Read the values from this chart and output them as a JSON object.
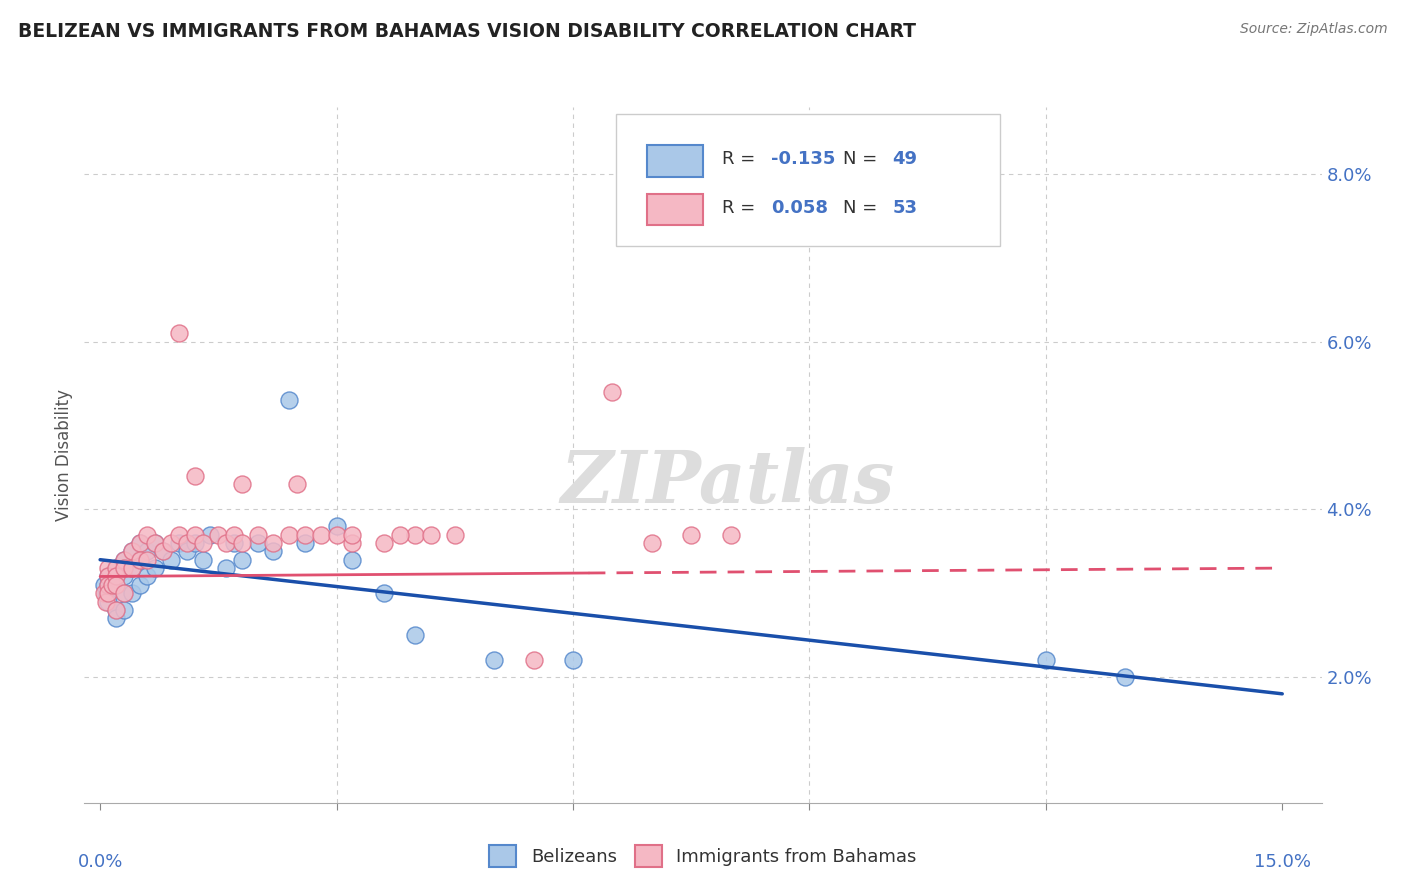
{
  "title": "BELIZEAN VS IMMIGRANTS FROM BAHAMAS VISION DISABILITY CORRELATION CHART",
  "source": "Source: ZipAtlas.com",
  "ylabel": "Vision Disability",
  "xgrid_ticks": [
    0.0,
    0.03,
    0.06,
    0.09,
    0.12,
    0.15
  ],
  "ygrid_ticks": [
    0.02,
    0.04,
    0.06,
    0.08
  ],
  "xlim": [
    -0.002,
    0.155
  ],
  "ylim": [
    0.005,
    0.088
  ],
  "blue_R": -0.135,
  "blue_N": 49,
  "pink_R": 0.058,
  "pink_N": 53,
  "blue_color": "#aac8e8",
  "pink_color": "#f5b8c4",
  "blue_edge_color": "#5588cc",
  "pink_edge_color": "#e07088",
  "blue_line_color": "#1a4faa",
  "pink_line_color": "#e05070",
  "watermark": "ZIPatlas",
  "legend_label_blue": "Belizeans",
  "legend_label_pink": "Immigrants from Bahamas",
  "blue_x": [
    0.0005,
    0.0007,
    0.001,
    0.001,
    0.001,
    0.001,
    0.0015,
    0.002,
    0.002,
    0.002,
    0.002,
    0.002,
    0.003,
    0.003,
    0.003,
    0.003,
    0.003,
    0.004,
    0.004,
    0.004,
    0.005,
    0.005,
    0.005,
    0.006,
    0.006,
    0.007,
    0.007,
    0.008,
    0.009,
    0.01,
    0.011,
    0.012,
    0.013,
    0.014,
    0.016,
    0.017,
    0.018,
    0.02,
    0.022,
    0.024,
    0.026,
    0.03,
    0.032,
    0.036,
    0.04,
    0.05,
    0.06,
    0.12,
    0.13
  ],
  "blue_y": [
    0.031,
    0.03,
    0.032,
    0.031,
    0.03,
    0.029,
    0.031,
    0.033,
    0.032,
    0.031,
    0.028,
    0.027,
    0.034,
    0.033,
    0.032,
    0.03,
    0.028,
    0.035,
    0.033,
    0.03,
    0.036,
    0.034,
    0.031,
    0.035,
    0.032,
    0.036,
    0.033,
    0.035,
    0.034,
    0.036,
    0.035,
    0.036,
    0.034,
    0.037,
    0.033,
    0.036,
    0.034,
    0.036,
    0.035,
    0.053,
    0.036,
    0.038,
    0.034,
    0.03,
    0.025,
    0.022,
    0.022,
    0.022,
    0.02
  ],
  "pink_x": [
    0.0005,
    0.0007,
    0.001,
    0.001,
    0.001,
    0.001,
    0.0015,
    0.002,
    0.002,
    0.002,
    0.002,
    0.003,
    0.003,
    0.003,
    0.004,
    0.004,
    0.005,
    0.005,
    0.006,
    0.006,
    0.007,
    0.008,
    0.009,
    0.01,
    0.011,
    0.012,
    0.013,
    0.015,
    0.016,
    0.017,
    0.018,
    0.02,
    0.022,
    0.024,
    0.026,
    0.028,
    0.03,
    0.032,
    0.036,
    0.04,
    0.045,
    0.055,
    0.065,
    0.07,
    0.075,
    0.08,
    0.01,
    0.012,
    0.018,
    0.025,
    0.032,
    0.038,
    0.042
  ],
  "pink_y": [
    0.03,
    0.029,
    0.033,
    0.032,
    0.031,
    0.03,
    0.031,
    0.033,
    0.032,
    0.031,
    0.028,
    0.034,
    0.033,
    0.03,
    0.035,
    0.033,
    0.036,
    0.034,
    0.037,
    0.034,
    0.036,
    0.035,
    0.036,
    0.037,
    0.036,
    0.037,
    0.036,
    0.037,
    0.036,
    0.037,
    0.036,
    0.037,
    0.036,
    0.037,
    0.037,
    0.037,
    0.037,
    0.036,
    0.036,
    0.037,
    0.037,
    0.022,
    0.054,
    0.036,
    0.037,
    0.037,
    0.061,
    0.044,
    0.043,
    0.043,
    0.037,
    0.037,
    0.037
  ],
  "pink_line_switch_x": 0.062,
  "blue_trend_y0": 0.034,
  "blue_trend_y1": 0.018,
  "pink_trend_y0": 0.032,
  "pink_trend_y1": 0.033
}
